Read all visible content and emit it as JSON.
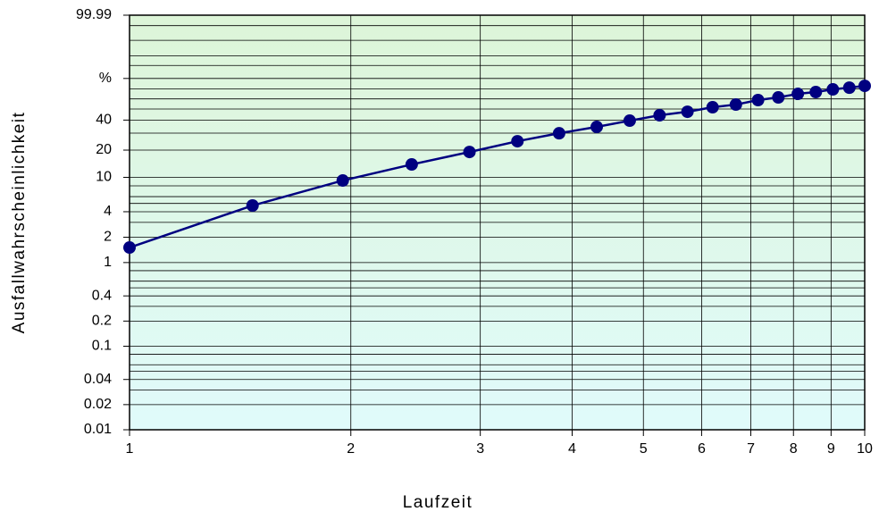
{
  "chart_data": {
    "type": "line",
    "xlabel": "Laufzeit",
    "ylabel": "Ausfallwahrscheinlichkeit",
    "xscale": "log",
    "yscale": "weibull",
    "xlim": [
      1,
      10
    ],
    "xticks": [
      1,
      2,
      3,
      4,
      5,
      6,
      7,
      8,
      9,
      10
    ],
    "ylim": [
      0.01,
      99.99
    ],
    "yticks": [
      99.99,
      {
        "value": 80,
        "label": "%"
      },
      40,
      20,
      10,
      4,
      2,
      1,
      0.4,
      0.2,
      0.1,
      0.04,
      0.02,
      0.01
    ],
    "yminor": [
      99.9,
      99,
      95,
      90,
      70,
      60,
      50,
      30,
      8,
      6,
      5,
      3,
      0.8,
      0.6,
      0.5,
      0.3,
      0.08,
      0.06,
      0.05,
      0.03
    ],
    "grid": true,
    "series": [
      {
        "color": "#000080",
        "x": [
          1,
          1.47,
          1.95,
          2.42,
          2.9,
          3.37,
          3.84,
          4.32,
          4.79,
          5.26,
          5.74,
          6.21,
          6.68,
          7.16,
          7.63,
          8.11,
          8.58,
          9.05,
          9.53,
          10
        ],
        "values": [
          1.51,
          4.73,
          9.2,
          13.96,
          19.1,
          24.8,
          29.9,
          34.5,
          39.5,
          44.2,
          47.4,
          51.7,
          54.3,
          58.8,
          61.5,
          65.1,
          66.9,
          69.6,
          71.3,
          73.1
        ]
      }
    ]
  }
}
